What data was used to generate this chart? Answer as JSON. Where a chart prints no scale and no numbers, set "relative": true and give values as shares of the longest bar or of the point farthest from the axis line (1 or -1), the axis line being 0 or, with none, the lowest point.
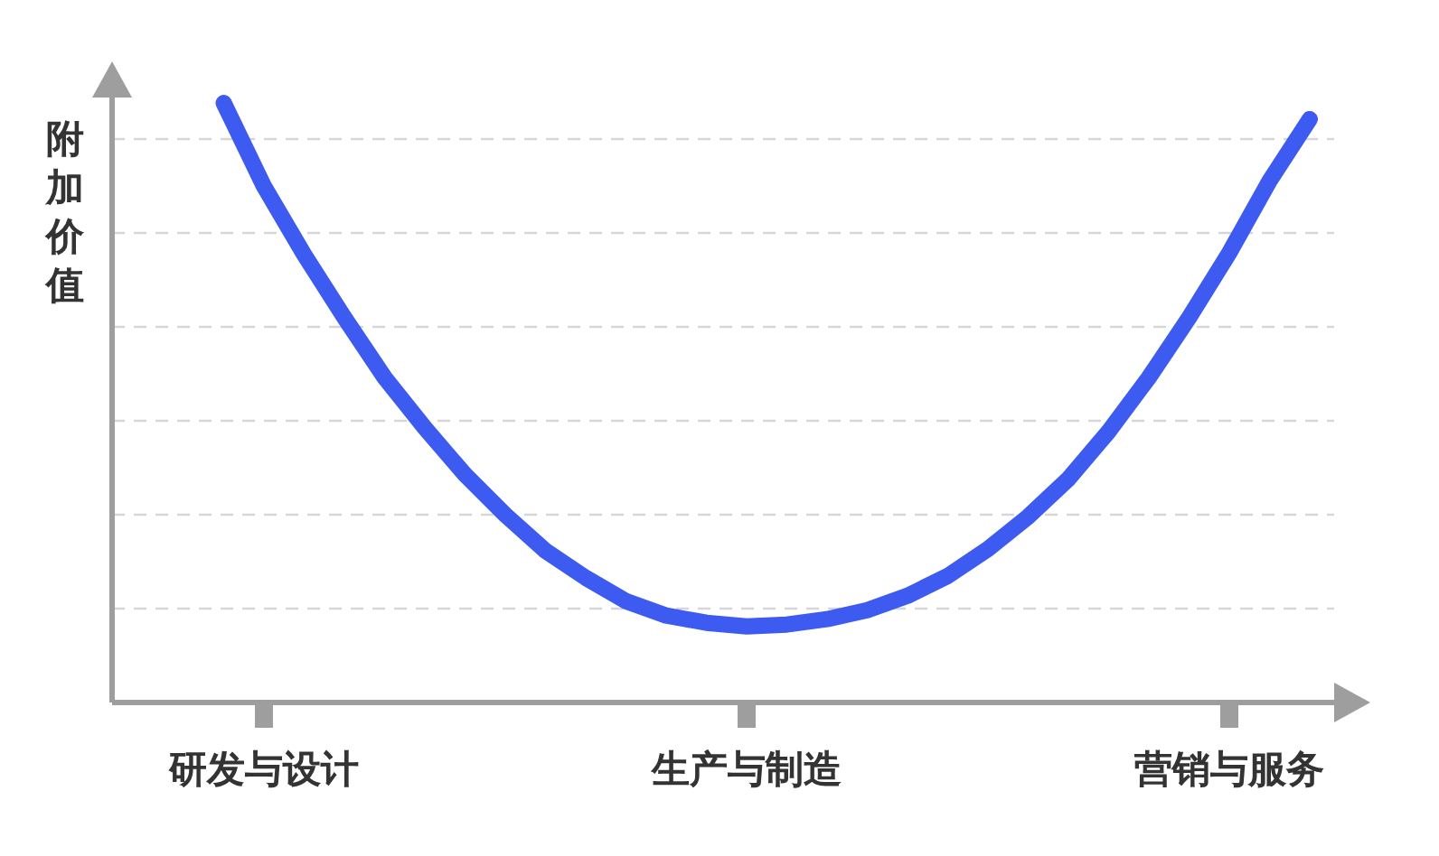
{
  "chart_data": {
    "type": "line",
    "ylabel": "附加价值",
    "relative": true,
    "grid": "y",
    "categories": [
      null,
      "研发与设计",
      null,
      null,
      null,
      null,
      null,
      null,
      null,
      null,
      null,
      null,
      null,
      "生产与制造",
      null,
      null,
      null,
      null,
      null,
      null,
      null,
      null,
      null,
      null,
      null,
      "营销与服务",
      null,
      null
    ],
    "series": [
      {
        "color": "#3d5af1",
        "values": [
          1.0,
          0.861,
          0.747,
          0.642,
          0.542,
          0.458,
          0.38,
          0.313,
          0.253,
          0.208,
          0.169,
          0.145,
          0.133,
          0.127,
          0.13,
          0.139,
          0.154,
          0.178,
          0.211,
          0.256,
          0.31,
          0.373,
          0.452,
          0.542,
          0.642,
          0.75,
          0.87,
          0.973
        ]
      }
    ]
  }
}
